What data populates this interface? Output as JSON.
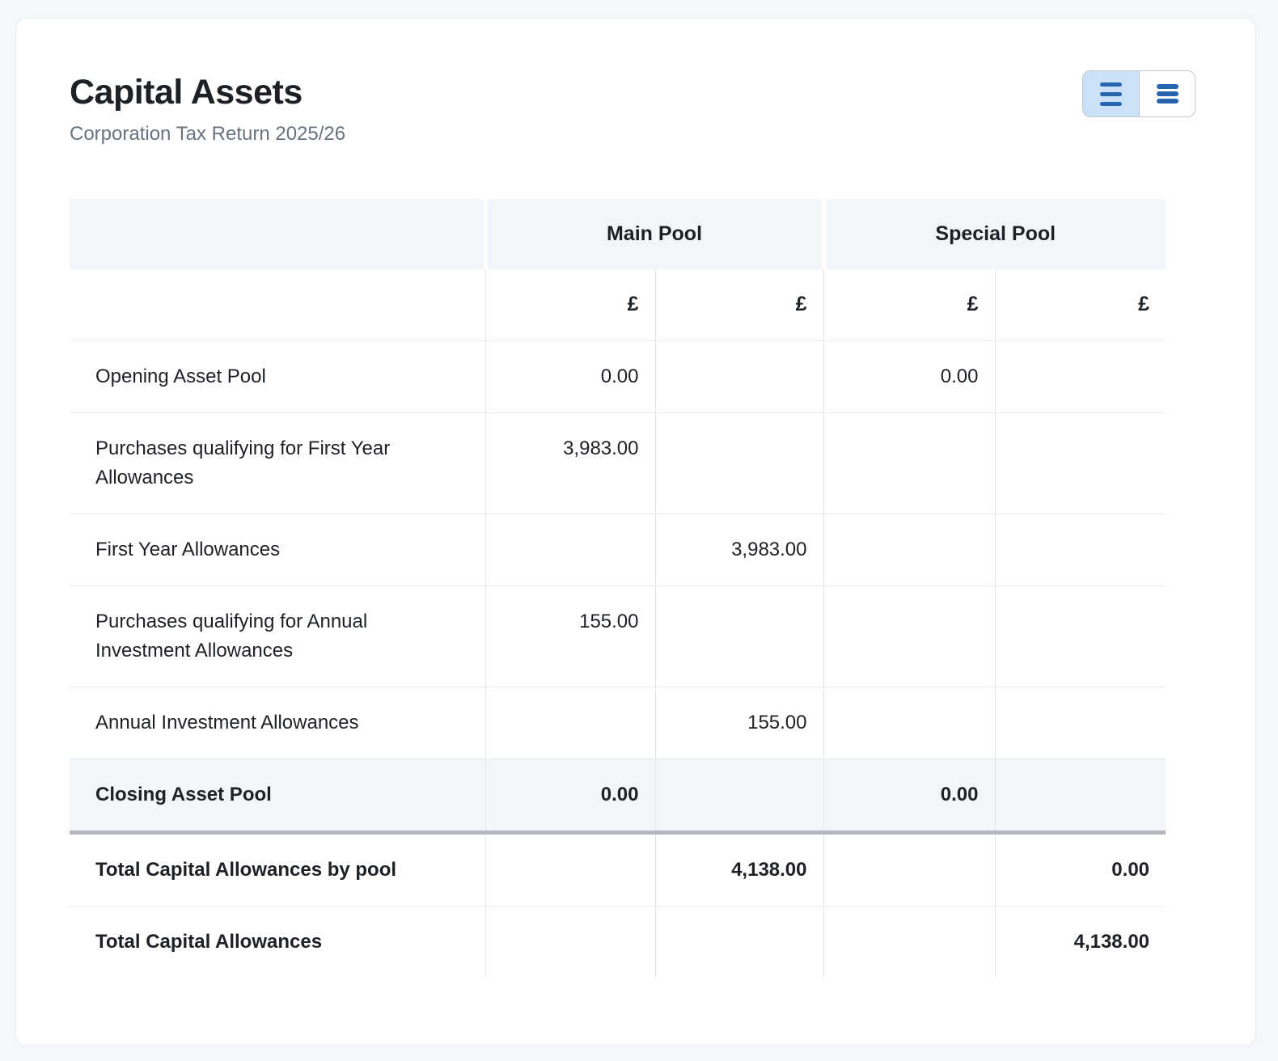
{
  "header": {
    "title": "Capital Assets",
    "subtitle": "Corporation Tax Return 2025/26"
  },
  "view_toggle": {
    "options": [
      {
        "id": "comfortable-rows",
        "icon": "rows-comfortable-icon",
        "active": true
      },
      {
        "id": "compact-rows",
        "icon": "rows-compact-icon",
        "active": false
      }
    ]
  },
  "table": {
    "groups": [
      {
        "label": ""
      },
      {
        "label": "Main Pool"
      },
      {
        "label": "Special Pool"
      }
    ],
    "currency_row": [
      "£",
      "£",
      "£",
      "£"
    ],
    "rows": [
      {
        "label": "Opening Asset Pool",
        "values": [
          "0.00",
          "",
          "0.00",
          ""
        ],
        "style": "normal"
      },
      {
        "label": "Purchases qualifying for First Year Allowances",
        "values": [
          "3,983.00",
          "",
          "",
          ""
        ],
        "style": "normal"
      },
      {
        "label": "First Year Allowances",
        "values": [
          "",
          "3,983.00",
          "",
          ""
        ],
        "style": "normal"
      },
      {
        "label": "Purchases qualifying for Annual Investment Allowances",
        "values": [
          "155.00",
          "",
          "",
          ""
        ],
        "style": "normal"
      },
      {
        "label": "Annual Investment Allowances",
        "values": [
          "",
          "155.00",
          "",
          ""
        ],
        "style": "normal"
      },
      {
        "label": "Closing Asset Pool",
        "values": [
          "0.00",
          "",
          "0.00",
          ""
        ],
        "style": "subtotal"
      },
      {
        "label": "Total Capital Allowances by pool",
        "values": [
          "",
          "4,138.00",
          "",
          "0.00"
        ],
        "style": "total"
      },
      {
        "label": "Total Capital Allowances",
        "values": [
          "",
          "",
          "",
          "4,138.00"
        ],
        "style": "total"
      }
    ]
  },
  "colors": {
    "page_bg": "#f4f7fb",
    "card_bg": "#ffffff",
    "card_border": "#e7eaef",
    "header_bg": "#f2f6fb",
    "row_highlight_bg": "#f2f6fb",
    "grid_line": "#e2e5ea",
    "row_line": "#e9ebef",
    "heavy_line": "#b4b8c1",
    "text": "#1d2126",
    "muted_text": "#68737f",
    "icon_blue": "#2765b0",
    "toggle_active_bg": "#cce1f7",
    "toggle_border": "#c2c6cc"
  }
}
